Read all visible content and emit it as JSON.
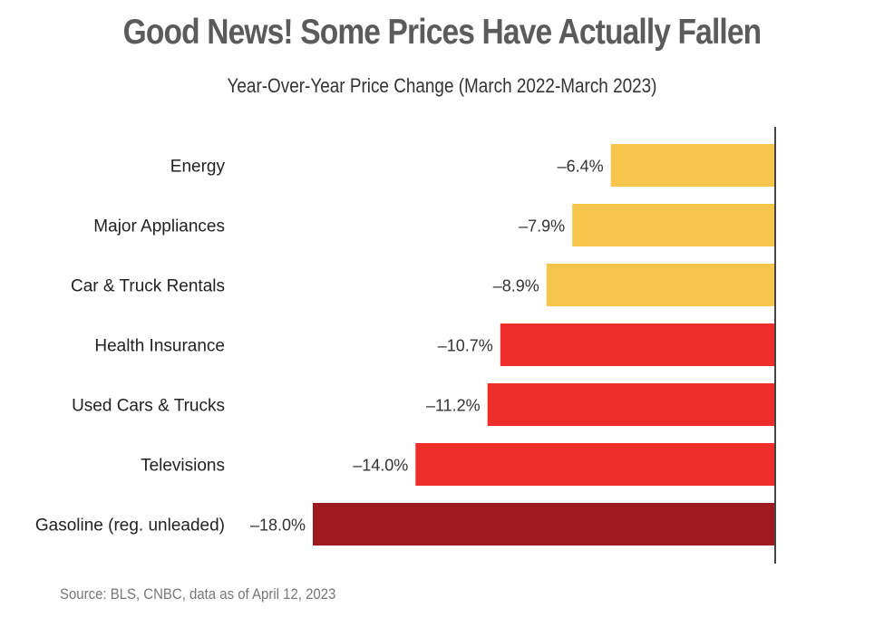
{
  "header": {
    "title": "Good News! Some Prices Have Actually Fallen",
    "subtitle": "Year-Over-Year Price Change (March 2022-March 2023)"
  },
  "footer": {
    "source": "Source: BLS, CNBC, data as of April 12, 2023"
  },
  "colors": {
    "moderate": "#f7c54c",
    "large": "#ee2e2b",
    "largest": "#9e1a1e",
    "axis": "#444444"
  },
  "chart_data": {
    "type": "bar",
    "orientation": "horizontal",
    "title": "Good News! Some Prices Have Actually Fallen",
    "subtitle": "Year-Over-Year Price Change (March 2022-March 2023)",
    "categories": [
      "Energy",
      "Major Appliances",
      "Car & Truck Rentals",
      "Health Insurance",
      "Used Cars & Trucks",
      "Televisions",
      "Gasoline (reg. unleaded)"
    ],
    "values": [
      -6.4,
      -7.9,
      -8.9,
      -10.7,
      -11.2,
      -14.0,
      -18.0
    ],
    "value_labels": [
      "–6.4%",
      "–7.9%",
      "–8.9%",
      "–10.7%",
      "–11.2%",
      "–14.0%",
      "–18.0%"
    ],
    "bar_color_keys": [
      "moderate",
      "moderate",
      "moderate",
      "large",
      "large",
      "large",
      "largest"
    ],
    "xlim": [
      -18.0,
      0
    ],
    "grid": false,
    "legend": "none"
  }
}
